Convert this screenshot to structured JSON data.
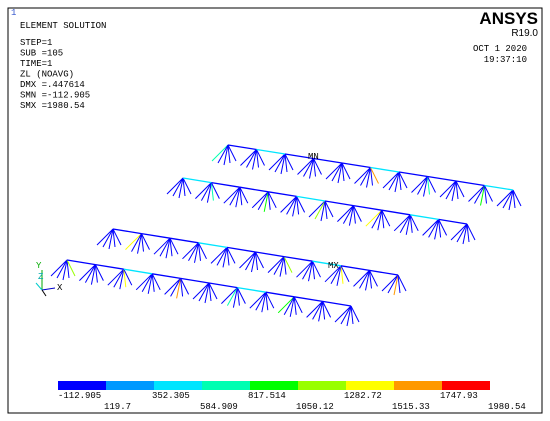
{
  "window_number": "1",
  "title": "ELEMENT SOLUTION",
  "info": [
    "STEP=1",
    "SUB =105",
    "TIME=1",
    "ZL       (NOAVG)",
    "DMX =.447614",
    "SMN =-112.905",
    "SMX =1980.54"
  ],
  "logo": "ANSYS",
  "version": "R19.0",
  "date": "OCT  1 2020",
  "time": "19:37:10",
  "min_marker": "MN",
  "max_marker": "MX",
  "triad": [
    "Y",
    "Z",
    "X"
  ],
  "legend": {
    "colors": [
      "#0000ff",
      "#0099ff",
      "#00e5ff",
      "#00ffb2",
      "#00ff00",
      "#99ff00",
      "#ffff00",
      "#ff9900",
      "#ff0000"
    ],
    "labels": [
      "-112.905",
      "119.7",
      "352.305",
      "584.909",
      "817.514",
      "1050.12",
      "1282.72",
      "1515.33",
      "1747.93",
      "1980.54"
    ]
  }
}
